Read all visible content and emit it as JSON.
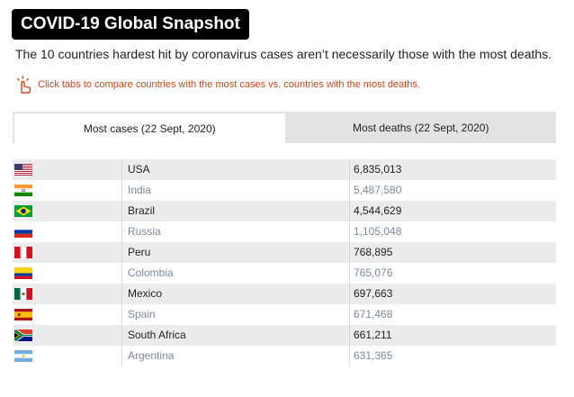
{
  "header": {
    "title": "COVID-19 Global Snapshot",
    "subtitle": "The 10 countries hardest hit by coronavirus cases aren’t necessarily those with the most deaths.",
    "hint": "Click tabs to compare countries with the most cases vs. countries with the most deaths."
  },
  "colors": {
    "accent_hint": "#c9471a",
    "title_bg": "#000000",
    "tab_bar": "#e3e3e3"
  },
  "tabs": [
    {
      "label": "Most cases (22 Sept, 2020)",
      "active": true
    },
    {
      "label": "Most deaths (22 Sept, 2020)",
      "active": false
    }
  ],
  "rows": [
    {
      "flag": "usa-flag-icon",
      "country": "USA",
      "value": "6,835,013"
    },
    {
      "flag": "india-flag-icon",
      "country": "India",
      "value": "5,487,580"
    },
    {
      "flag": "brazil-flag-icon",
      "country": "Brazil",
      "value": "4,544,629"
    },
    {
      "flag": "russia-flag-icon",
      "country": "Russia",
      "value": "1,105,048"
    },
    {
      "flag": "peru-flag-icon",
      "country": "Peru",
      "value": "768,895"
    },
    {
      "flag": "colombia-flag-icon",
      "country": "Colombia",
      "value": "765,076"
    },
    {
      "flag": "mexico-flag-icon",
      "country": "Mexico",
      "value": "697,663"
    },
    {
      "flag": "spain-flag-icon",
      "country": "Spain",
      "value": "671,468"
    },
    {
      "flag": "south-africa-flag-icon",
      "country": "South Africa",
      "value": "661,211"
    },
    {
      "flag": "argentina-flag-icon",
      "country": "Argentina",
      "value": "631,365"
    }
  ]
}
